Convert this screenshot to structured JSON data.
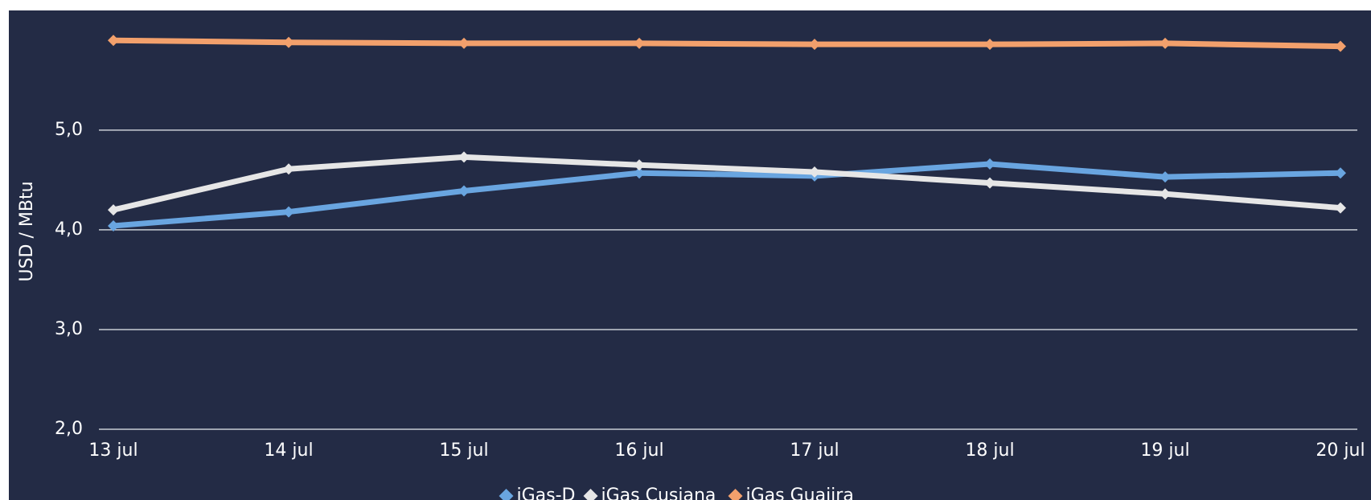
{
  "chart_data": {
    "type": "line",
    "y_label": "USD / MBtu",
    "categories": [
      "13 jul",
      "14 jul",
      "15 jul",
      "16 jul",
      "17 jul",
      "18 jul",
      "19 jul",
      "20 jul"
    ],
    "series": [
      {
        "name": "iGas-D",
        "color": "#69a5e0",
        "values": [
          4.04,
          4.18,
          4.39,
          4.57,
          4.54,
          4.66,
          4.53,
          4.57
        ]
      },
      {
        "name": "iGas Cusiana",
        "color": "#e6e6e6",
        "values": [
          4.2,
          4.61,
          4.73,
          4.65,
          4.58,
          4.47,
          4.36,
          4.22
        ]
      },
      {
        "name": "iGas Guajira",
        "color": "#f2a06c",
        "values": [
          5.9,
          5.88,
          5.87,
          5.87,
          5.86,
          5.86,
          5.87,
          5.84
        ]
      }
    ],
    "ylim": [
      2,
      6.2
    ],
    "yticks": [
      {
        "value": 2,
        "label": "2,0"
      },
      {
        "value": 3,
        "label": "3,0"
      },
      {
        "value": 4,
        "label": "4,0"
      },
      {
        "value": 5,
        "label": "5,0"
      }
    ],
    "grid": true,
    "legend": "bottom"
  }
}
